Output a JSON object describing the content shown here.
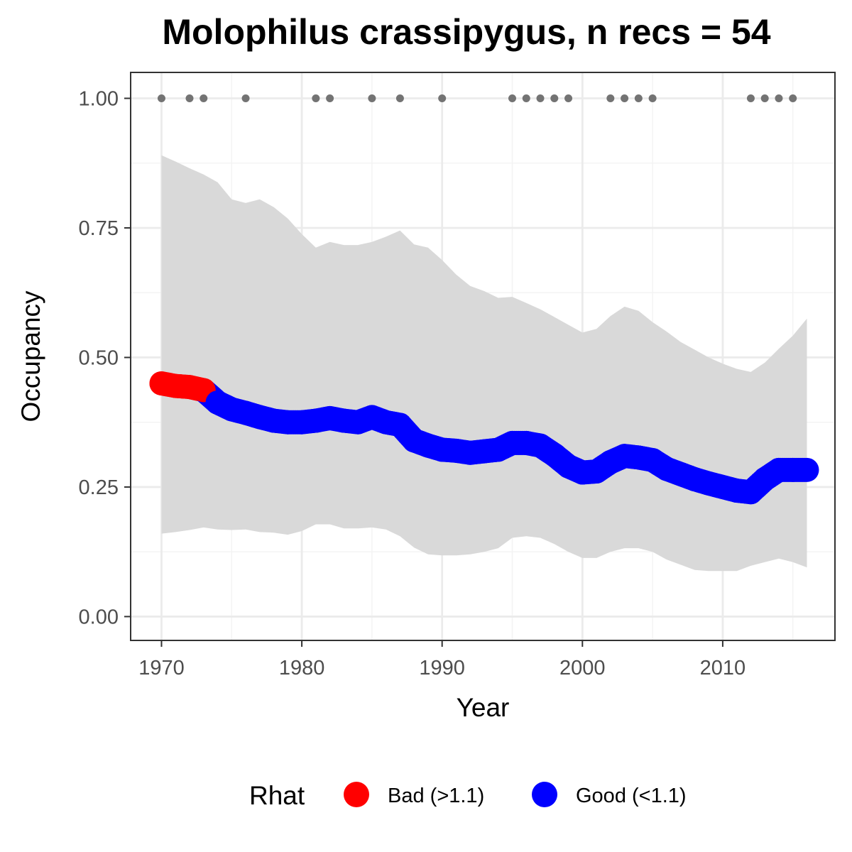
{
  "chart_data": {
    "type": "line",
    "title": "Molophilus crassipygus, n recs = 54",
    "xlabel": "Year",
    "ylabel": "Occupancy",
    "xlim": [
      1967.8,
      1918.0
    ],
    "x_ticks": [
      1970,
      1980,
      1990,
      2000,
      2010
    ],
    "x_tick_labels": [
      "1970",
      "1980",
      "1990",
      "2000",
      "2010"
    ],
    "ylim": [
      -0.046,
      1.05
    ],
    "y_ticks": [
      0,
      0.25,
      0.5,
      0.75,
      1.0
    ],
    "y_tick_labels": [
      "0.00",
      "0.25",
      "0.50",
      "0.75",
      "1.00"
    ],
    "grid": true,
    "legend_position": "bottom",
    "legend": {
      "title": "Rhat",
      "entries": [
        {
          "label": "Bad (>1.1)",
          "color": "#ff0000"
        },
        {
          "label": "Good (<1.1)",
          "color": "#0000ff"
        }
      ]
    },
    "colors": {
      "bad": "#ff0000",
      "good": "#0000ff",
      "ribbon": "#d9d9d9",
      "record_points": "#737373",
      "panel_border": "#333333",
      "grid_major": "#ebebeb",
      "grid_minor": "#f3f3f3"
    },
    "record_years": [
      1970,
      1972,
      1973,
      1976,
      1981,
      1982,
      1985,
      1987,
      1990,
      1995,
      1996,
      1997,
      1998,
      1999,
      2002,
      2003,
      2004,
      2005,
      2012,
      2013,
      2014,
      2015
    ],
    "record_value": 1.0,
    "series": [
      {
        "name": "Occupancy",
        "x": [
          1970,
          1971,
          1972,
          1973,
          1974,
          1975,
          1976,
          1977,
          1978,
          1979,
          1980,
          1981,
          1982,
          1983,
          1984,
          1985,
          1986,
          1987,
          1988,
          1989,
          1990,
          1991,
          1992,
          1993,
          1994,
          1995,
          1996,
          1997,
          1998,
          1999,
          2000,
          2001,
          2002,
          2003,
          2004,
          2005,
          2006,
          2007,
          2008,
          2009,
          2010,
          2011,
          2012,
          2013,
          2014,
          2015,
          2016
        ],
        "mean": [
          0.45,
          0.445,
          0.443,
          0.437,
          0.413,
          0.4,
          0.393,
          0.385,
          0.378,
          0.375,
          0.375,
          0.378,
          0.383,
          0.378,
          0.375,
          0.385,
          0.375,
          0.37,
          0.34,
          0.33,
          0.322,
          0.32,
          0.316,
          0.319,
          0.322,
          0.335,
          0.335,
          0.33,
          0.312,
          0.29,
          0.278,
          0.28,
          0.298,
          0.31,
          0.307,
          0.302,
          0.285,
          0.275,
          0.265,
          0.257,
          0.25,
          0.243,
          0.24,
          0.265,
          0.283,
          0.283,
          0.283
        ],
        "lower": [
          0.16,
          0.163,
          0.167,
          0.172,
          0.168,
          0.167,
          0.168,
          0.163,
          0.162,
          0.158,
          0.165,
          0.178,
          0.178,
          0.17,
          0.17,
          0.172,
          0.168,
          0.155,
          0.133,
          0.12,
          0.118,
          0.118,
          0.12,
          0.125,
          0.132,
          0.152,
          0.155,
          0.152,
          0.14,
          0.125,
          0.113,
          0.113,
          0.125,
          0.132,
          0.132,
          0.125,
          0.11,
          0.1,
          0.09,
          0.088,
          0.088,
          0.088,
          0.098,
          0.105,
          0.112,
          0.105,
          0.095
        ],
        "upper": [
          0.89,
          0.878,
          0.865,
          0.853,
          0.838,
          0.805,
          0.798,
          0.805,
          0.79,
          0.768,
          0.738,
          0.712,
          0.723,
          0.717,
          0.717,
          0.723,
          0.733,
          0.745,
          0.718,
          0.712,
          0.688,
          0.66,
          0.638,
          0.628,
          0.615,
          0.617,
          0.605,
          0.593,
          0.578,
          0.563,
          0.548,
          0.555,
          0.58,
          0.598,
          0.59,
          0.568,
          0.55,
          0.53,
          0.515,
          0.5,
          0.488,
          0.478,
          0.472,
          0.49,
          0.517,
          0.542,
          0.575
        ],
        "rhat_bad": [
          true,
          true,
          true,
          true,
          false,
          false,
          false,
          false,
          false,
          false,
          false,
          false,
          false,
          false,
          false,
          false,
          false,
          false,
          false,
          false,
          false,
          false,
          false,
          false,
          false,
          false,
          false,
          false,
          false,
          false,
          false,
          false,
          false,
          false,
          false,
          false,
          false,
          false,
          false,
          false,
          false,
          false,
          false,
          false,
          false,
          false,
          false
        ]
      }
    ]
  }
}
